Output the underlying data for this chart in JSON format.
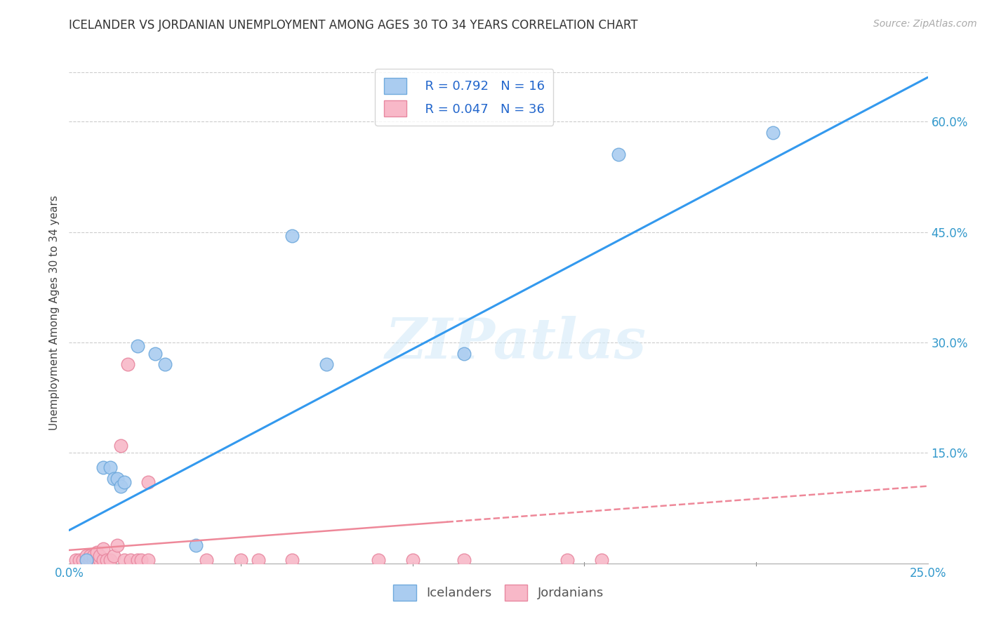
{
  "title": "ICELANDER VS JORDANIAN UNEMPLOYMENT AMONG AGES 30 TO 34 YEARS CORRELATION CHART",
  "source": "Source: ZipAtlas.com",
  "ylabel": "Unemployment Among Ages 30 to 34 years",
  "watermark": "ZIPatlas",
  "legend_r1_text": "R = 0.792   N = 16",
  "legend_r2_text": "R = 0.047   N = 36",
  "icelander_color": "#aaccf0",
  "icelander_edge": "#70aadd",
  "jordanian_color": "#f8b8c8",
  "jordanian_edge": "#e888a0",
  "trendline_ice_color": "#3399ee",
  "trendline_jor_color": "#ee8899",
  "xlim": [
    0.0,
    0.25
  ],
  "ylim": [
    0.0,
    0.68
  ],
  "yticks_right": [
    0.15,
    0.3,
    0.45,
    0.6
  ],
  "ytick_labels_right": [
    "15.0%",
    "30.0%",
    "45.0%",
    "60.0%"
  ],
  "background_color": "#ffffff",
  "grid_color": "#cccccc",
  "ice_scatter_x": [
    0.005,
    0.01,
    0.012,
    0.013,
    0.014,
    0.015,
    0.016,
    0.02,
    0.025,
    0.028,
    0.037,
    0.065,
    0.075,
    0.115,
    0.16,
    0.205
  ],
  "ice_scatter_y": [
    0.005,
    0.13,
    0.13,
    0.115,
    0.115,
    0.105,
    0.11,
    0.295,
    0.285,
    0.27,
    0.025,
    0.445,
    0.27,
    0.285,
    0.555,
    0.585
  ],
  "jor_scatter_x": [
    0.002,
    0.003,
    0.004,
    0.005,
    0.005,
    0.006,
    0.006,
    0.007,
    0.007,
    0.008,
    0.008,
    0.009,
    0.009,
    0.01,
    0.01,
    0.011,
    0.012,
    0.013,
    0.014,
    0.015,
    0.016,
    0.017,
    0.018,
    0.02,
    0.021,
    0.023,
    0.023,
    0.04,
    0.05,
    0.055,
    0.065,
    0.09,
    0.1,
    0.115,
    0.145,
    0.155
  ],
  "jor_scatter_y": [
    0.005,
    0.005,
    0.005,
    0.005,
    0.01,
    0.005,
    0.01,
    0.005,
    0.01,
    0.005,
    0.015,
    0.005,
    0.01,
    0.005,
    0.02,
    0.005,
    0.005,
    0.01,
    0.025,
    0.16,
    0.005,
    0.27,
    0.005,
    0.005,
    0.005,
    0.005,
    0.11,
    0.005,
    0.005,
    0.005,
    0.005,
    0.005,
    0.005,
    0.005,
    0.005,
    0.005
  ],
  "ice_trendline_x": [
    0.0,
    0.25
  ],
  "ice_trendline_y": [
    0.045,
    0.66
  ],
  "jor_trendline_x": [
    0.0,
    0.25
  ],
  "jor_trendline_y": [
    0.018,
    0.105
  ]
}
